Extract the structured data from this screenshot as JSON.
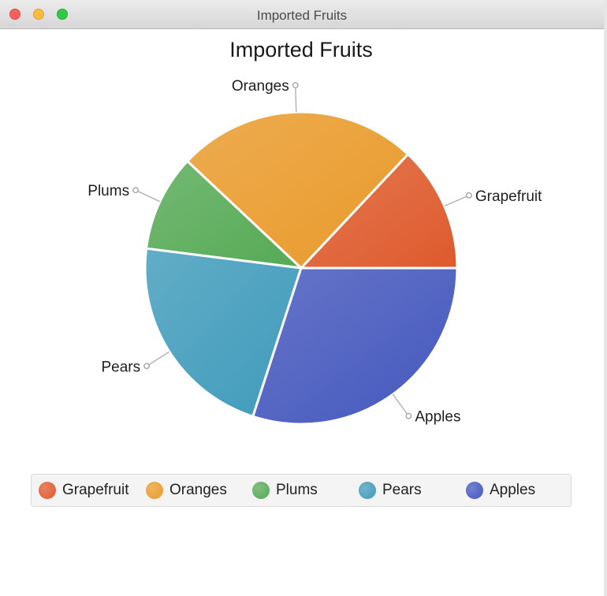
{
  "window": {
    "title": "Imported Fruits"
  },
  "chart_data": {
    "type": "pie",
    "title": "Imported Fruits",
    "categories": [
      "Grapefruit",
      "Oranges",
      "Plums",
      "Pears",
      "Apples"
    ],
    "values": [
      13,
      25,
      10,
      22,
      30
    ],
    "colors": [
      "#de5a2c",
      "#e99a2a",
      "#55aa55",
      "#3f9bbb",
      "#4457bd"
    ],
    "legend_position": "bottom"
  }
}
